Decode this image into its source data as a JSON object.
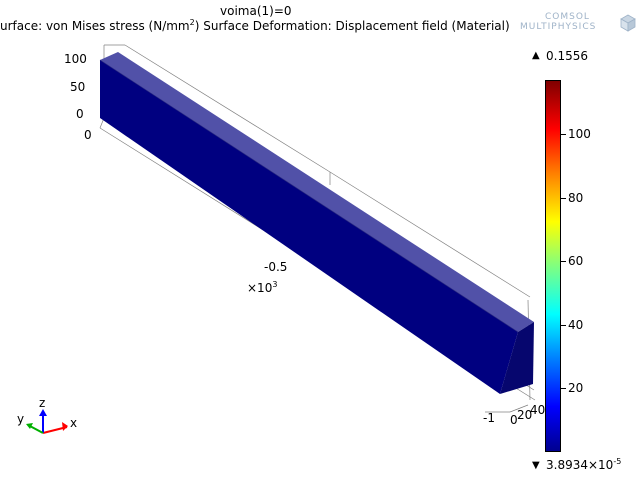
{
  "plot": {
    "title": "voima(1)=0",
    "subtitle_part1": "urface: von Mises stress (N/mm",
    "subtitle_exp": "2",
    "subtitle_part2": ")   Surface Deformation: Displacement field (Material)"
  },
  "logo": {
    "line1": "COMSOL",
    "line2": "MULTIPHYSICS"
  },
  "colorbar": {
    "max_label": "0.1556",
    "min_label_base": "3.8934×10",
    "min_label_exp": "-5",
    "ticks": [
      "100",
      "80",
      "60",
      "40",
      "20"
    ],
    "colors": [
      "#7f0000",
      "#ff0000",
      "#ff8000",
      "#ffff00",
      "#80ff80",
      "#00ffff",
      "#0080ff",
      "#0000ff",
      "#00008f"
    ]
  },
  "axes": {
    "z_ticks": [
      "100",
      "50",
      "0"
    ],
    "y_origin": "0",
    "x_mid": "-0.5",
    "x_multiplier_base": "×10",
    "x_multiplier_exp": "3",
    "x_end": "-1",
    "y_ticks": [
      "40",
      "20",
      "0"
    ]
  },
  "triad": {
    "x_label": "x",
    "y_label": "y",
    "z_label": "z"
  },
  "beam": {
    "top_color": "#5151a8",
    "front_color": "#000080",
    "end_color": "#06066e"
  }
}
